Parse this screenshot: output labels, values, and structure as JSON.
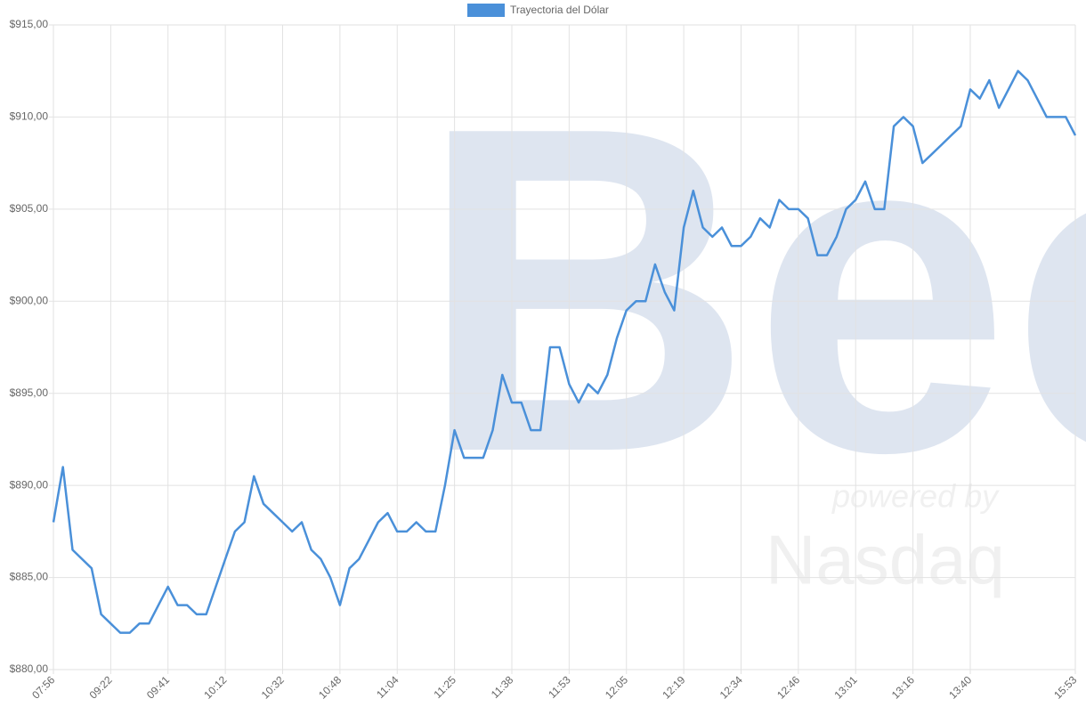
{
  "chart_data": {
    "type": "line",
    "legend": {
      "position": "top"
    },
    "grid": true,
    "watermark": {
      "logo": "Bec",
      "subtitle": "powered by",
      "brand": "Nasdaq"
    },
    "categories": [
      "07:56",
      null,
      null,
      null,
      null,
      null,
      "09:22",
      null,
      null,
      null,
      null,
      null,
      "09:41",
      null,
      null,
      null,
      null,
      null,
      "10:12",
      null,
      null,
      null,
      null,
      null,
      "10:32",
      null,
      null,
      null,
      null,
      null,
      "10:48",
      null,
      null,
      null,
      null,
      null,
      "11:04",
      null,
      null,
      null,
      null,
      null,
      "11:25",
      null,
      null,
      null,
      null,
      null,
      "11:38",
      null,
      null,
      null,
      null,
      null,
      "11:53",
      null,
      null,
      null,
      null,
      null,
      "12:05",
      null,
      null,
      null,
      null,
      null,
      "12:19",
      null,
      null,
      null,
      null,
      null,
      "12:34",
      null,
      null,
      null,
      null,
      null,
      "12:46",
      null,
      null,
      null,
      null,
      null,
      "13:01",
      null,
      null,
      null,
      null,
      null,
      "13:16",
      null,
      null,
      null,
      null,
      null,
      "13:40",
      null,
      null,
      null,
      null,
      null,
      null,
      null,
      null,
      null,
      null,
      "15:53"
    ],
    "series": [
      {
        "name": "Trayectoria del Dólar",
        "color": "#4a90d9",
        "values": [
          888,
          891,
          886.5,
          886,
          885.5,
          883,
          882.5,
          882,
          882,
          882.5,
          882.5,
          883.5,
          884.5,
          883.5,
          883.5,
          883,
          883,
          884.5,
          886,
          887.5,
          888,
          890.5,
          889,
          888.5,
          888,
          887.5,
          888,
          886.5,
          886,
          885,
          883.5,
          885.5,
          886,
          887,
          888,
          888.5,
          887.5,
          887.5,
          888,
          887.5,
          887.5,
          890,
          893,
          891.5,
          891.5,
          891.5,
          893,
          896,
          894.5,
          894.5,
          893,
          893,
          897.5,
          897.5,
          895.5,
          894.5,
          895.5,
          895,
          896,
          898,
          899.5,
          900,
          900,
          902,
          900.5,
          899.5,
          904,
          906,
          904,
          903.5,
          904,
          903,
          903,
          903.5,
          904.5,
          904,
          905.5,
          905,
          905,
          904.5,
          902.5,
          902.5,
          903.5,
          905,
          905.5,
          906.5,
          905,
          905,
          909.5,
          910,
          909.5,
          907.5,
          908,
          908.5,
          909,
          909.5,
          911.5,
          911,
          912,
          910.5,
          911.5,
          912.5,
          912,
          911,
          910,
          910,
          910,
          909
        ]
      }
    ],
    "ylim": [
      880,
      915
    ],
    "yticks": [
      {
        "value": 880,
        "label": "$880,00"
      },
      {
        "value": 885,
        "label": "$885,00"
      },
      {
        "value": 890,
        "label": "$890,00"
      },
      {
        "value": 895,
        "label": "$895,00"
      },
      {
        "value": 900,
        "label": "$900,00"
      },
      {
        "value": 905,
        "label": "$905,00"
      },
      {
        "value": 910,
        "label": "$910,00"
      },
      {
        "value": 915,
        "label": "$915,00"
      }
    ]
  }
}
